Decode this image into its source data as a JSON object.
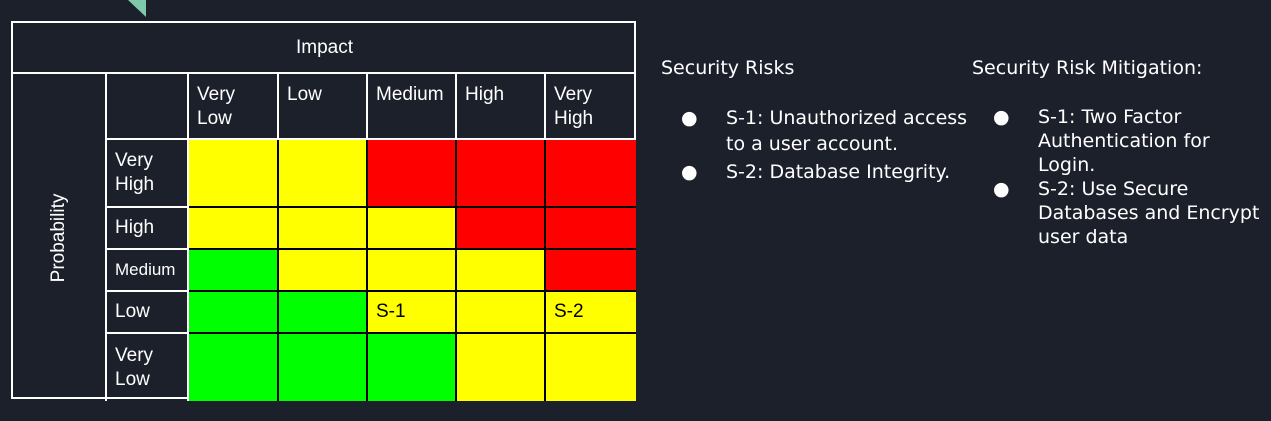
{
  "matrix": {
    "impact_label": "Impact",
    "probability_label": "Probability",
    "impact_levels": [
      "Very Low",
      "Low",
      "Medium",
      "High",
      "Very High"
    ],
    "probability_levels": [
      "Very High",
      "High",
      "Medium",
      "Low",
      "Very Low"
    ],
    "colors": {
      "green": "#00ff00",
      "yellow": "#ffff00",
      "red": "#ff0000"
    },
    "grid": [
      [
        "yellow",
        "yellow",
        "red",
        "red",
        "red"
      ],
      [
        "yellow",
        "yellow",
        "yellow",
        "red",
        "red"
      ],
      [
        "green",
        "yellow",
        "yellow",
        "yellow",
        "red"
      ],
      [
        "green",
        "green",
        "yellow",
        "yellow",
        "yellow"
      ],
      [
        "green",
        "green",
        "green",
        "yellow",
        "yellow"
      ]
    ],
    "cell_labels": {
      "s1": "S-1",
      "s2": "S-2"
    }
  },
  "risks": {
    "title": "Security Risks",
    "items": [
      "S-1: Unauthorized access to a user account.",
      "S-2: Database Integrity."
    ]
  },
  "mitigation": {
    "title": "Security Risk Mitigation:",
    "items": [
      "S-1: Two Factor Authentication for Login.",
      "S-2: Use Secure Databases and Encrypt user data"
    ]
  },
  "bullet_symbol": "●"
}
